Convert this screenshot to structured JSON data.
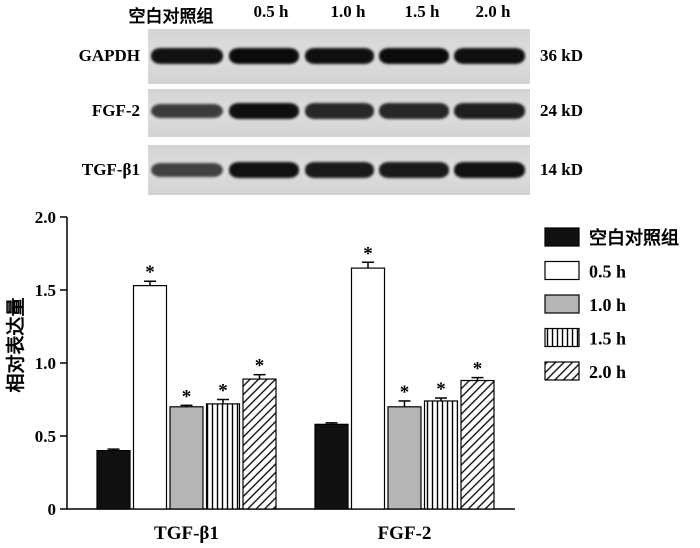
{
  "blot": {
    "lanes": [
      "空白对照组",
      "0.5 h",
      "1.0 h",
      "1.5 h",
      "2.0 h"
    ],
    "rows": [
      {
        "protein": "GAPDH",
        "size": "36 kD",
        "band_intensity": [
          0.92,
          0.95,
          0.93,
          0.95,
          0.93
        ]
      },
      {
        "protein": "FGF-2",
        "size": "24 kD",
        "band_intensity": [
          0.72,
          0.93,
          0.82,
          0.82,
          0.86
        ]
      },
      {
        "protein": "TGF-β1",
        "size": "14 kD",
        "band_intensity": [
          0.7,
          0.92,
          0.88,
          0.88,
          0.92
        ]
      }
    ]
  },
  "chart_data": {
    "type": "bar",
    "categories": [
      "TGF-β1",
      "FGF-2"
    ],
    "series": [
      {
        "name": "空白对照组",
        "values": [
          0.4,
          0.58
        ],
        "errors": [
          0.01,
          0.01
        ],
        "significant": [
          false,
          false
        ],
        "fill": "#111111"
      },
      {
        "name": "0.5 h",
        "values": [
          1.53,
          1.65
        ],
        "errors": [
          0.03,
          0.04
        ],
        "significant": [
          true,
          true
        ],
        "fill": "#ffffff"
      },
      {
        "name": "1.0 h",
        "values": [
          0.7,
          0.7
        ],
        "errors": [
          0.01,
          0.04
        ],
        "significant": [
          true,
          true
        ],
        "fill": "#b5b5b5"
      },
      {
        "name": "1.5 h",
        "values": [
          0.72,
          0.74
        ],
        "errors": [
          0.03,
          0.02
        ],
        "significant": [
          true,
          true
        ],
        "fill": "vertical-stripes"
      },
      {
        "name": "2.0 h",
        "values": [
          0.89,
          0.88
        ],
        "errors": [
          0.03,
          0.02
        ],
        "significant": [
          true,
          true
        ],
        "fill": "diagonal-hatch"
      }
    ],
    "ylabel": "相对表达量",
    "ylim": [
      0,
      2.0
    ],
    "yticks": [
      "0",
      "0.5",
      "1.0",
      "1.5",
      "2.0"
    ],
    "grid": false,
    "legend": "right",
    "significance_marker": "*"
  }
}
